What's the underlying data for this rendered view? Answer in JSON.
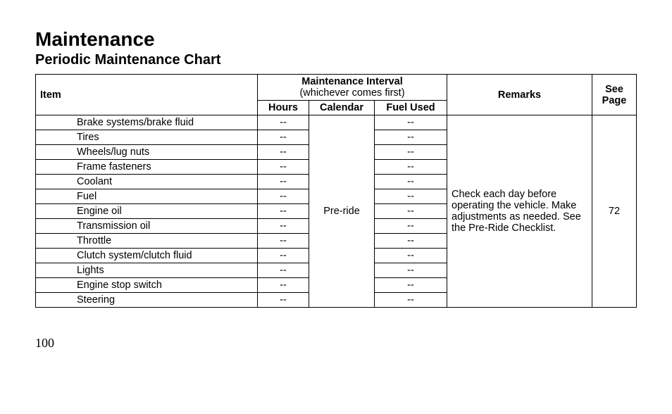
{
  "title": "Maintenance",
  "subtitle": "Periodic Maintenance Chart",
  "headers": {
    "item": "Item",
    "interval": "Maintenance Interval",
    "interval_sub": "(whichever comes first)",
    "remarks": "Remarks",
    "see_page": "See Page",
    "hours": "Hours",
    "calendar": "Calendar",
    "fuel_used": "Fuel Used"
  },
  "calendar_value": "Pre-ride",
  "remarks_text": "Check each day before operating the vehicle. Make adjustments as needed. See the Pre-Ride Checklist.",
  "see_page_value": "72",
  "items": [
    {
      "name": "Brake systems/brake fluid",
      "hours": "--",
      "fuel": "--"
    },
    {
      "name": "Tires",
      "hours": "--",
      "fuel": "--"
    },
    {
      "name": "Wheels/lug nuts",
      "hours": "--",
      "fuel": "--"
    },
    {
      "name": "Frame fasteners",
      "hours": "--",
      "fuel": "--"
    },
    {
      "name": "Coolant",
      "hours": "--",
      "fuel": "--"
    },
    {
      "name": "Fuel",
      "hours": "--",
      "fuel": "--"
    },
    {
      "name": "Engine oil",
      "hours": "--",
      "fuel": "--"
    },
    {
      "name": "Transmission oil",
      "hours": "--",
      "fuel": "--"
    },
    {
      "name": "Throttle",
      "hours": "--",
      "fuel": "--"
    },
    {
      "name": "Clutch system/clutch fluid",
      "hours": "--",
      "fuel": "--"
    },
    {
      "name": "Lights",
      "hours": "--",
      "fuel": "--"
    },
    {
      "name": "Engine stop switch",
      "hours": "--",
      "fuel": "--"
    },
    {
      "name": "Steering",
      "hours": "--",
      "fuel": "--"
    }
  ],
  "page_number": "100"
}
